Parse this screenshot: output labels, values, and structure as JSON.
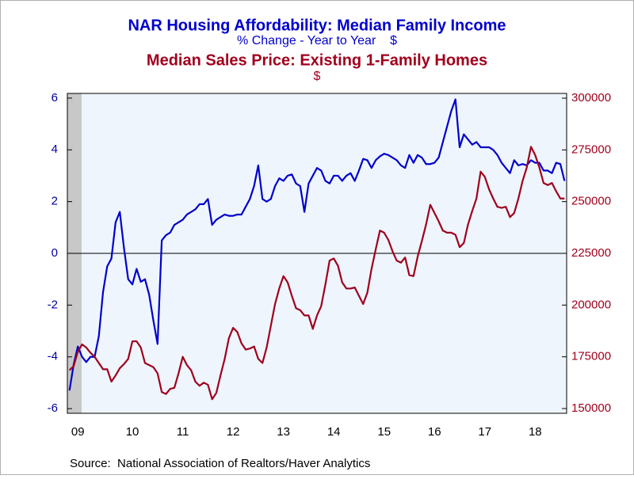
{
  "chart_data": {
    "type": "line",
    "source": "Source:  National Association of Realtors/Haver Analytics",
    "categories": [
      null,
      null,
      "09",
      null,
      null,
      null,
      null,
      null,
      null,
      null,
      null,
      null,
      null,
      null,
      null,
      "10",
      null,
      null,
      null,
      null,
      null,
      null,
      null,
      null,
      null,
      null,
      null,
      "11",
      null,
      null,
      null,
      null,
      null,
      null,
      null,
      null,
      null,
      null,
      null,
      "12",
      null,
      null,
      null,
      null,
      null,
      null,
      null,
      null,
      null,
      null,
      null,
      "13",
      null,
      null,
      null,
      null,
      null,
      null,
      null,
      null,
      null,
      null,
      null,
      "14",
      null,
      null,
      null,
      null,
      null,
      null,
      null,
      null,
      null,
      null,
      null,
      "15",
      null,
      null,
      null,
      null,
      null,
      null,
      null,
      null,
      null,
      null,
      null,
      "16",
      null,
      null,
      null,
      null,
      null,
      null,
      null,
      null,
      null,
      null,
      null,
      "17",
      null,
      null,
      null,
      null,
      null,
      null,
      null,
      null,
      null,
      null,
      null,
      "18",
      null,
      null,
      null,
      null,
      null,
      null,
      null
    ],
    "series": [
      {
        "name": "NAR Housing Affordability: Median Family Income",
        "units": "% Change - Year to Year    $",
        "color": "#0000cc",
        "axis": "y",
        "values": [
          -5.3,
          -4.3,
          -3.6,
          -4.0,
          -4.2,
          -4.0,
          -4.0,
          -3.2,
          -1.5,
          -0.5,
          -0.2,
          1.2,
          1.6,
          0.2,
          -1.0,
          -1.2,
          -0.6,
          -1.1,
          -1.0,
          -1.6,
          -2.6,
          -3.5,
          0.5,
          0.7,
          0.8,
          1.1,
          1.2,
          1.3,
          1.5,
          1.6,
          1.7,
          1.9,
          1.9,
          2.1,
          1.1,
          1.3,
          1.4,
          1.5,
          1.45,
          1.45,
          1.5,
          1.5,
          1.8,
          2.1,
          2.6,
          3.4,
          2.1,
          2.0,
          2.1,
          2.6,
          2.9,
          2.8,
          3.0,
          3.05,
          2.7,
          2.6,
          1.6,
          2.7,
          3.0,
          3.3,
          3.2,
          2.8,
          2.7,
          3.0,
          3.0,
          2.8,
          3.0,
          3.1,
          2.8,
          3.2,
          3.65,
          3.6,
          3.3,
          3.6,
          3.75,
          3.85,
          3.8,
          3.7,
          3.6,
          3.4,
          3.3,
          3.8,
          3.5,
          3.8,
          3.7,
          3.45,
          3.45,
          3.5,
          3.7,
          4.3,
          4.9,
          5.5,
          5.95,
          4.1,
          4.6,
          4.4,
          4.2,
          4.3,
          4.1,
          4.1,
          4.1,
          4.0,
          3.8,
          3.5,
          3.3,
          3.1,
          3.6,
          3.4,
          3.45,
          3.4,
          3.6,
          3.5,
          3.5,
          3.2,
          3.2,
          3.1,
          3.5,
          3.45,
          2.8
        ]
      },
      {
        "name": "Median Sales Price: Existing 1-Family Homes",
        "units": "$",
        "color": "#a0001c",
        "axis": "y2",
        "values": [
          168500,
          170500,
          177500,
          181000,
          179500,
          177000,
          175000,
          172000,
          169000,
          169000,
          163000,
          166000,
          169500,
          171500,
          174000,
          182500,
          182500,
          179500,
          172000,
          171000,
          170000,
          167000,
          158000,
          157000,
          159500,
          160000,
          167000,
          175000,
          171000,
          168500,
          163000,
          161000,
          162500,
          161500,
          154500,
          157500,
          166000,
          174000,
          184000,
          189000,
          187000,
          181500,
          178500,
          179000,
          180000,
          174000,
          172000,
          179500,
          190000,
          200500,
          208000,
          214000,
          211000,
          204500,
          198500,
          197500,
          195000,
          195000,
          188500,
          195000,
          199500,
          210000,
          221500,
          222500,
          219000,
          211000,
          208000,
          208000,
          208500,
          204500,
          200500,
          206000,
          217500,
          227000,
          236000,
          235000,
          231500,
          226000,
          221500,
          220500,
          223000,
          214500,
          214000,
          223500,
          231000,
          239000,
          248500,
          244500,
          240500,
          236000,
          235000,
          235000,
          234000,
          228000,
          230000,
          239000,
          245500,
          251500,
          264500,
          262000,
          256000,
          251500,
          247500,
          247000,
          247500,
          242500,
          244500,
          251500,
          260000,
          266500,
          276500,
          272500,
          266500,
          259000,
          258000,
          259000,
          255000,
          251500,
          251500
        ]
      }
    ],
    "ylim": [
      -6.18,
      6.18
    ],
    "yticks": [
      6,
      4,
      2,
      0,
      -2,
      -4,
      -6
    ],
    "y2lim": [
      147700,
      302300
    ],
    "y2ticks": [
      300000,
      275000,
      250000,
      225000,
      200000,
      175000,
      150000
    ]
  }
}
